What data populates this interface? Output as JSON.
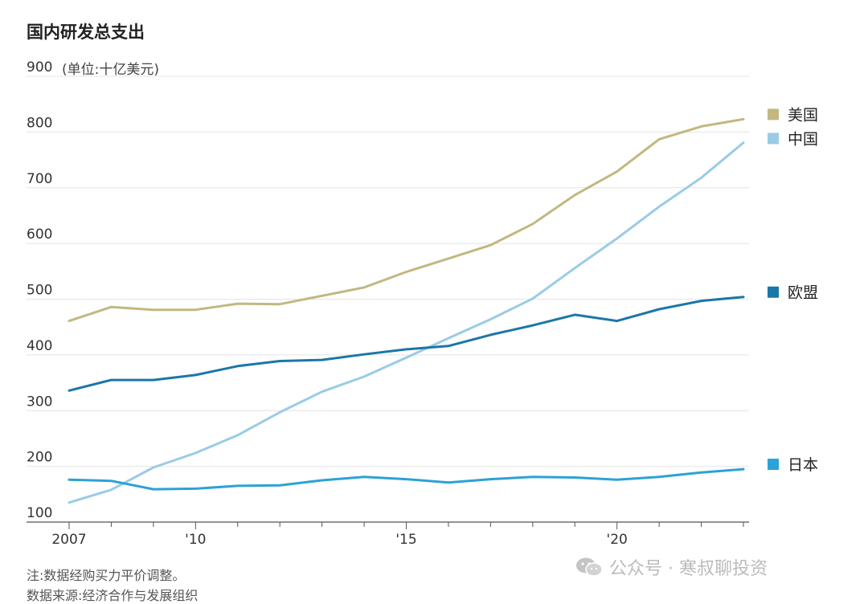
{
  "chart_data": {
    "type": "line",
    "title": "国内研发总支出",
    "ylabel": "(单位:十亿美元)",
    "ylim": [
      100,
      900
    ],
    "yticks": [
      "100",
      "200",
      "300",
      "400",
      "500",
      "600",
      "700",
      "800",
      "900"
    ],
    "xlim": [
      2007,
      2023
    ],
    "xticks": [
      {
        "value": 2007,
        "label": "2007"
      },
      {
        "value": 2010,
        "label": "'10"
      },
      {
        "value": 2015,
        "label": "'15"
      },
      {
        "value": 2020,
        "label": "'20"
      }
    ],
    "x": [
      2007,
      2008,
      2009,
      2010,
      2011,
      2012,
      2013,
      2014,
      2015,
      2016,
      2017,
      2018,
      2019,
      2020,
      2021,
      2022,
      2023
    ],
    "grid": true,
    "legend_placement": "right, at line ends",
    "series": [
      {
        "name": "美国",
        "color": "#c2b880",
        "values": [
          461,
          486,
          481,
          481,
          492,
          491,
          506,
          521,
          549,
          573,
          597,
          635,
          687,
          729,
          787,
          810,
          823
        ]
      },
      {
        "name": "中国",
        "color": "#9acbe6",
        "values": [
          135,
          158,
          198,
          224,
          256,
          297,
          334,
          361,
          395,
          430,
          464,
          501,
          556,
          609,
          666,
          718,
          781
        ]
      },
      {
        "name": "欧盟",
        "color": "#1a77a8",
        "values": [
          336,
          355,
          355,
          364,
          380,
          389,
          391,
          401,
          410,
          416,
          436,
          453,
          472,
          461,
          482,
          497,
          504
        ]
      },
      {
        "name": "日本",
        "color": "#2ca2d6",
        "values": [
          176,
          174,
          159,
          160,
          165,
          166,
          175,
          181,
          177,
          171,
          177,
          181,
          180,
          176,
          181,
          189,
          195
        ]
      }
    ]
  },
  "notes": {
    "note": "注:数据经购买力平价调整。",
    "source": "数据来源:经济合作与发展组织"
  },
  "watermark": {
    "text": "公众号 · 寒叔聊投资",
    "icon": "wechat-icon",
    "color": "#bbbbbb"
  }
}
